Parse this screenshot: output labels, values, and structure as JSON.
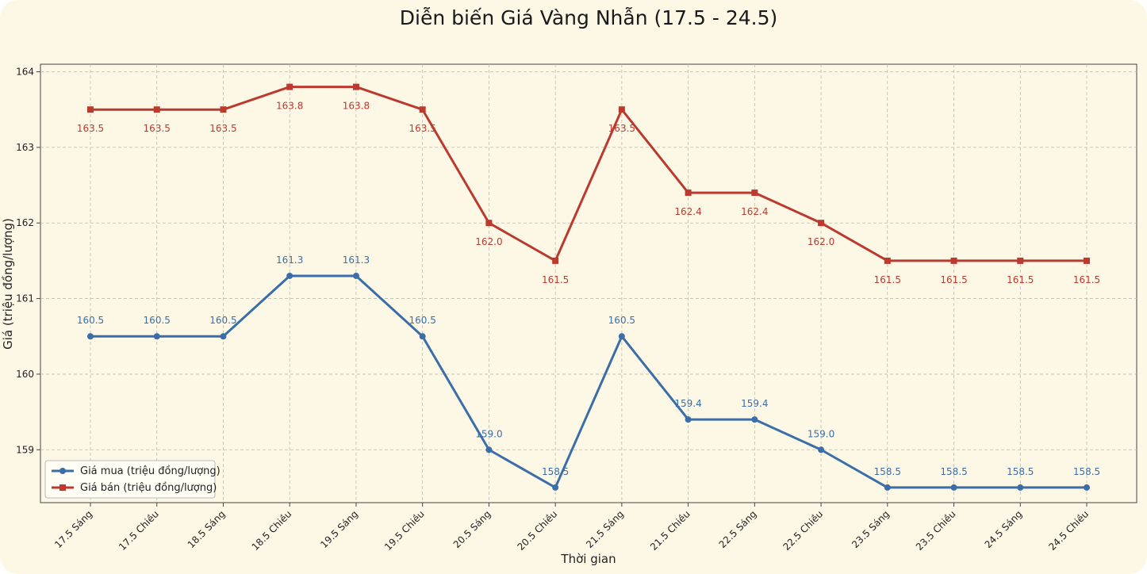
{
  "chart_data": {
    "type": "line",
    "title": "Diễn biến Giá Vàng Nhẫn (17.5 - 24.5)",
    "xlabel": "Thời gian",
    "ylabel": "Giá (triệu đồng/lượng)",
    "categories": [
      "17.5 Sáng",
      "17.5 Chiều",
      "18.5 Sáng",
      "18.5 Chiều",
      "19.5 Sáng",
      "19.5 Chiều",
      "20.5 Sáng",
      "20.5 Chiều",
      "21.5 Sáng",
      "21.5 Chiều",
      "22.5 Sáng",
      "22.5 Chiều",
      "23.5 Sáng",
      "23.5 Chiều",
      "24.5 Sáng",
      "24.5 Chiều"
    ],
    "ylim": [
      158.3,
      164.1
    ],
    "yticks": [
      159,
      160,
      161,
      162,
      163,
      164
    ],
    "grid": true,
    "legend_position": "bottom-left",
    "series": [
      {
        "name": "Giá mua (triệu đồng/lượng)",
        "color": "#3b6ea8",
        "marker": "circle",
        "label_position": "above",
        "values": [
          160.5,
          160.5,
          160.5,
          161.3,
          161.3,
          160.5,
          159.0,
          158.5,
          160.5,
          159.4,
          159.4,
          159.0,
          158.5,
          158.5,
          158.5,
          158.5
        ]
      },
      {
        "name": "Giá bán (triệu đồng/lượng)",
        "color": "#bb3a2f",
        "marker": "square",
        "label_position": "below",
        "values": [
          163.5,
          163.5,
          163.5,
          163.8,
          163.8,
          163.5,
          162.0,
          161.5,
          163.5,
          162.4,
          162.4,
          162.0,
          161.5,
          161.5,
          161.5,
          161.5
        ]
      }
    ]
  }
}
